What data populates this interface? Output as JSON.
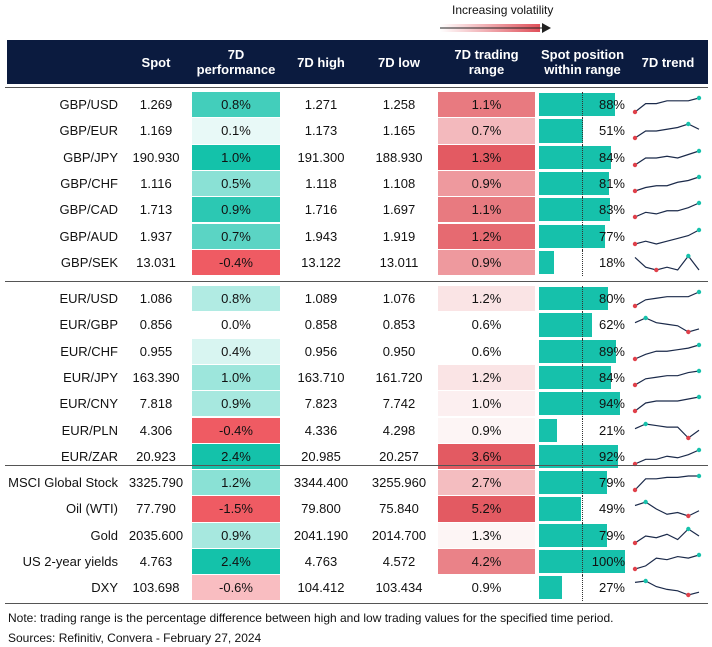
{
  "legend": "Increasing volatility",
  "table": {
    "columns": [
      "Spot",
      "7D performance",
      "7D high",
      "7D low",
      "7D trading range",
      "Spot position within range",
      "7D trend"
    ],
    "groups": [
      {
        "rows": [
          [
            "GBP/USD",
            "1.269",
            {
              "value": 0.8,
              "label": "0.8%"
            },
            "1.271",
            "1.258",
            {
              "value": 1.1,
              "label": "1.1%"
            },
            {
              "value": 88,
              "label": "88%"
            },
            [
              3,
              6,
              6,
              7,
              7,
              7,
              8
            ]
          ],
          [
            "GBP/EUR",
            "1.169",
            {
              "value": 0.1,
              "label": "0.1%"
            },
            "1.173",
            "1.165",
            {
              "value": 0.7,
              "label": "0.7%"
            },
            {
              "value": 51,
              "label": "51%"
            },
            [
              2,
              6,
              6,
              7,
              8,
              10,
              7
            ]
          ],
          [
            "GBP/JPY",
            "190.930",
            {
              "value": 1.0,
              "label": "1.0%"
            },
            "191.300",
            "188.930",
            {
              "value": 1.3,
              "label": "1.3%"
            },
            {
              "value": 84,
              "label": "84%"
            },
            [
              2,
              6,
              6,
              7,
              6,
              8,
              10
            ]
          ],
          [
            "GBP/CHF",
            "1.116",
            {
              "value": 0.5,
              "label": "0.5%"
            },
            "1.118",
            "1.108",
            {
              "value": 0.9,
              "label": "0.9%"
            },
            {
              "value": 81,
              "label": "81%"
            },
            [
              2,
              4,
              5,
              5,
              7,
              8,
              10
            ]
          ],
          [
            "GBP/CAD",
            "1.713",
            {
              "value": 0.9,
              "label": "0.9%"
            },
            "1.716",
            "1.697",
            {
              "value": 1.1,
              "label": "1.1%"
            },
            {
              "value": 83,
              "label": "83%"
            },
            [
              1,
              4,
              3,
              5,
              5,
              7,
              10
            ]
          ],
          [
            "GBP/AUD",
            "1.937",
            {
              "value": 0.7,
              "label": "0.7%"
            },
            "1.943",
            "1.919",
            {
              "value": 1.2,
              "label": "1.2%"
            },
            {
              "value": 77,
              "label": "77%"
            },
            [
              4,
              5,
              4,
              5,
              6,
              7,
              9
            ]
          ],
          [
            "GBP/SEK",
            "13.031",
            {
              "value": -0.4,
              "label": "-0.4%"
            },
            "13.122",
            "13.011",
            {
              "value": 0.9,
              "label": "0.9%"
            },
            {
              "value": 18,
              "label": "18%"
            },
            [
              9,
              2,
              0,
              2,
              0,
              10,
              0
            ]
          ]
        ]
      },
      {
        "rows": [
          [
            "EUR/USD",
            "1.086",
            {
              "value": 0.8,
              "label": "0.8%"
            },
            "1.089",
            "1.076",
            {
              "value": 1.2,
              "label": "1.2%"
            },
            {
              "value": 80,
              "label": "80%"
            },
            [
              1,
              5,
              6,
              7,
              7,
              7,
              10
            ]
          ],
          [
            "EUR/GBP",
            "0.856",
            {
              "value": 0.0,
              "label": "0.0%"
            },
            "0.858",
            "0.853",
            {
              "value": 0.6,
              "label": "0.6%"
            },
            {
              "value": 62,
              "label": "62%"
            },
            [
              7,
              10,
              7,
              6,
              5,
              1,
              3
            ]
          ],
          [
            "EUR/CHF",
            "0.955",
            {
              "value": 0.4,
              "label": "0.4%"
            },
            "0.956",
            "0.950",
            {
              "value": 0.6,
              "label": "0.6%"
            },
            {
              "value": 89,
              "label": "89%"
            },
            [
              1,
              4,
              6,
              6,
              7,
              8,
              10
            ]
          ],
          [
            "EUR/JPY",
            "163.390",
            {
              "value": 1.0,
              "label": "1.0%"
            },
            "163.710",
            "161.720",
            {
              "value": 1.2,
              "label": "1.2%"
            },
            {
              "value": 84,
              "label": "84%"
            },
            [
              1,
              5,
              6,
              7,
              7,
              9,
              10
            ]
          ],
          [
            "EUR/CNY",
            "7.818",
            {
              "value": 0.9,
              "label": "0.9%"
            },
            "7.823",
            "7.742",
            {
              "value": 1.0,
              "label": "1.0%"
            },
            {
              "value": 94,
              "label": "94%"
            },
            [
              3,
              7,
              8,
              8,
              8,
              9,
              10
            ]
          ],
          [
            "EUR/PLN",
            "4.306",
            {
              "value": -0.4,
              "label": "-0.4%"
            },
            "4.336",
            "4.298",
            {
              "value": 0.9,
              "label": "0.9%"
            },
            {
              "value": 21,
              "label": "21%"
            },
            [
              7,
              10,
              9,
              8,
              8,
              1,
              6
            ]
          ],
          [
            "EUR/ZAR",
            "20.923",
            {
              "value": 2.4,
              "label": "2.4%"
            },
            "20.985",
            "20.257",
            {
              "value": 3.6,
              "label": "3.6%"
            },
            {
              "value": 92,
              "label": "92%"
            },
            [
              1,
              4,
              4,
              6,
              5,
              7,
              10
            ]
          ]
        ]
      },
      {
        "rows": [
          [
            "MSCI Global Stock",
            "3325.790",
            {
              "value": 1.2,
              "label": "1.2%"
            },
            "3344.400",
            "3255.960",
            {
              "value": 2.7,
              "label": "2.7%"
            },
            {
              "value": 79,
              "label": "79%"
            },
            [
              0,
              8,
              8,
              9,
              9,
              10,
              10
            ]
          ],
          [
            "Oil (WTI)",
            "77.790",
            {
              "value": -1.5,
              "label": "-1.5%"
            },
            "79.800",
            "75.840",
            {
              "value": 5.2,
              "label": "5.2%"
            },
            {
              "value": 49,
              "label": "49%"
            },
            [
              8,
              10,
              6,
              3,
              4,
              2,
              5
            ]
          ],
          [
            "Gold",
            "2035.600",
            {
              "value": 0.9,
              "label": "0.9%"
            },
            "2041.190",
            "2014.700",
            {
              "value": 1.3,
              "label": "1.3%"
            },
            {
              "value": 79,
              "label": "79%"
            },
            [
              2,
              6,
              5,
              7,
              4,
              10,
              6
            ]
          ],
          [
            "US 2-year yields",
            "4.763",
            {
              "value": 2.4,
              "label": "2.4%"
            },
            "4.763",
            "4.572",
            {
              "value": 4.2,
              "label": "4.2%"
            },
            {
              "value": 100,
              "label": "100%"
            },
            [
              1,
              3,
              8,
              7,
              9,
              8,
              10
            ]
          ],
          [
            "DXY",
            "103.698",
            {
              "value": -0.6,
              "label": "-0.6%"
            },
            "104.412",
            "103.434",
            {
              "value": 0.9,
              "label": "0.9%"
            },
            {
              "value": 27,
              "label": "27%"
            },
            [
              9,
              10,
              6,
              4,
              3,
              0,
              2
            ]
          ]
        ]
      }
    ]
  },
  "footer": {
    "note": "Note: trading range is the percentage difference between high and low trading values for the specified time period.",
    "sources": "Sources: Refinitiv, Convera - February 27, 2024"
  }
}
